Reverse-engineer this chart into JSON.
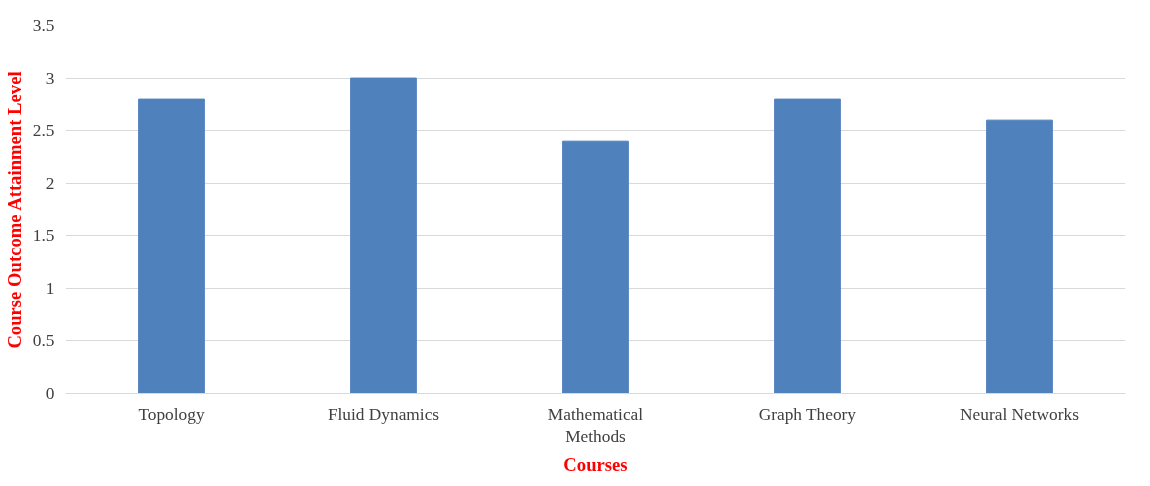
{
  "chart_data": {
    "type": "bar",
    "xlabel": "Courses",
    "ylabel": "Course Outcome Attainment Level",
    "categories": [
      "Topology",
      "Fluid Dynamics",
      "Mathematical Methods",
      "Graph Theory",
      "Neural Networks"
    ],
    "values": [
      2.8,
      3.0,
      2.4,
      2.8,
      2.6
    ],
    "color": "#4f81bd",
    "ylim": [
      0,
      3.5
    ],
    "yticks": [
      0,
      0.5,
      1,
      1.5,
      2,
      2.5,
      3,
      3.5
    ],
    "grid": "y"
  }
}
